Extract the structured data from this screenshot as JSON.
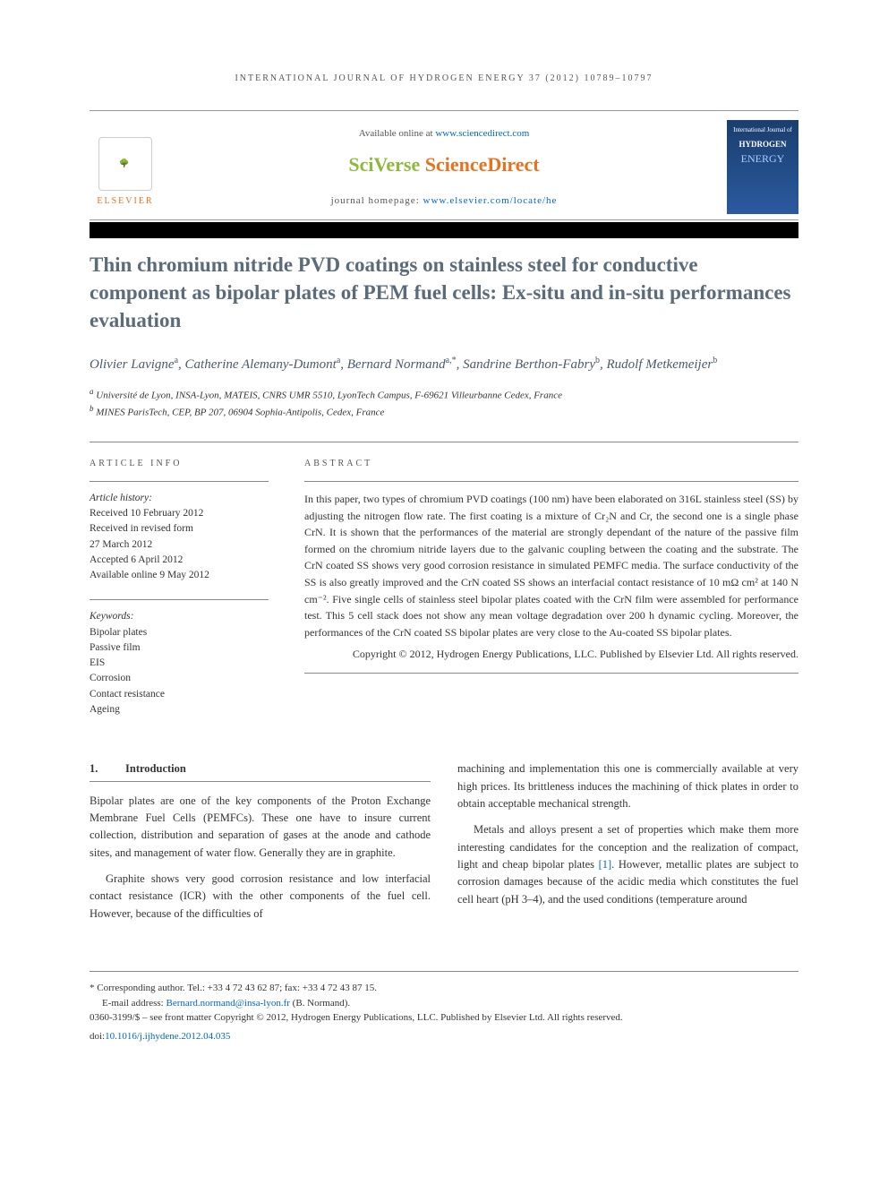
{
  "running_head": "INTERNATIONAL JOURNAL OF HYDROGEN ENERGY 37 (2012) 10789–10797",
  "header": {
    "available_text": "Available online at ",
    "available_link": "www.sciencedirect.com",
    "brand_sciverse": "SciVerse",
    "brand_sciencedirect": "ScienceDirect",
    "homepage_label": "journal homepage: ",
    "homepage_link": "www.elsevier.com/locate/he",
    "elsevier_label": "ELSEVIER",
    "cover_top": "International Journal of",
    "cover_h": "HYDROGEN",
    "cover_e": "ENERGY"
  },
  "title": "Thin chromium nitride PVD coatings on stainless steel for conductive component as bipolar plates of PEM fuel cells: Ex-situ and in-situ performances evaluation",
  "authors_html": "Olivier Lavigne<sup>a</sup>, Catherine Alemany-Dumont<sup>a</sup>, Bernard Normand<sup>a,*</sup>, Sandrine Berthon-Fabry<sup>b</sup>, Rudolf Metkemeijer<sup>b</sup>",
  "affiliations": {
    "a": "Université de Lyon, INSA-Lyon, MATEIS, CNRS UMR 5510, LyonTech Campus, F-69621 Villeurbanne Cedex, France",
    "b": "MINES ParisTech, CEP, BP 207, 06904 Sophia-Antipolis, Cedex, France"
  },
  "info": {
    "heading": "ARTICLE INFO",
    "history_label": "Article history:",
    "received": "Received 10 February 2012",
    "revised_label": "Received in revised form",
    "revised_date": "27 March 2012",
    "accepted": "Accepted 6 April 2012",
    "online": "Available online 9 May 2012",
    "keywords_label": "Keywords:",
    "keywords": [
      "Bipolar plates",
      "Passive film",
      "EIS",
      "Corrosion",
      "Contact resistance",
      "Ageing"
    ]
  },
  "abstract": {
    "heading": "ABSTRACT",
    "text": "In this paper, two types of chromium PVD coatings (100 nm) have been elaborated on 316L stainless steel (SS) by adjusting the nitrogen flow rate. The first coating is a mixture of Cr₂N and Cr, the second one is a single phase CrN. It is shown that the performances of the material are strongly dependant of the nature of the passive film formed on the chromium nitride layers due to the galvanic coupling between the coating and the substrate. The CrN coated SS shows very good corrosion resistance in simulated PEMFC media. The surface conductivity of the SS is also greatly improved and the CrN coated SS shows an interfacial contact resistance of 10 mΩ cm² at 140 N cm⁻². Five single cells of stainless steel bipolar plates coated with the CrN film were assembled for performance test. This 5 cell stack does not show any mean voltage degradation over 200 h dynamic cycling. Moreover, the performances of the CrN coated SS bipolar plates are very close to the Au-coated SS bipolar plates.",
    "copyright": "Copyright © 2012, Hydrogen Energy Publications, LLC. Published by Elsevier Ltd. All rights reserved."
  },
  "section1": {
    "num": "1.",
    "title": "Introduction",
    "p1": "Bipolar plates are one of the key components of the Proton Exchange Membrane Fuel Cells (PEMFCs). These one have to insure current collection, distribution and separation of gases at the anode and cathode sites, and management of water flow. Generally they are in graphite.",
    "p2": "Graphite shows very good corrosion resistance and low interfacial contact resistance (ICR) with the other components of the fuel cell. However, because of the difficulties of",
    "p3": "machining and implementation this one is commercially available at very high prices. Its brittleness induces the machining of thick plates in order to obtain acceptable mechanical strength.",
    "p4_pre": "Metals and alloys present a set of properties which make them more interesting candidates for the conception and the realization of compact, light and cheap bipolar plates ",
    "p4_ref": "[1]",
    "p4_post": ". However, metallic plates are subject to corrosion damages because of the acidic media which constitutes the fuel cell heart (pH 3–4), and the used conditions (temperature around"
  },
  "footer": {
    "corr_label": "* Corresponding author.",
    "corr_tel": " Tel.: +33 4 72 43 62 87; fax: +33 4 72 43 87 15.",
    "email_label": "E-mail address: ",
    "email": "Bernard.normand@insa-lyon.fr",
    "email_person": " (B. Normand).",
    "issn": "0360-3199/$ – see front matter Copyright © 2012, Hydrogen Energy Publications, LLC. Published by Elsevier Ltd. All rights reserved.",
    "doi_label": "doi:",
    "doi": "10.1016/j.ijhydene.2012.04.035"
  }
}
